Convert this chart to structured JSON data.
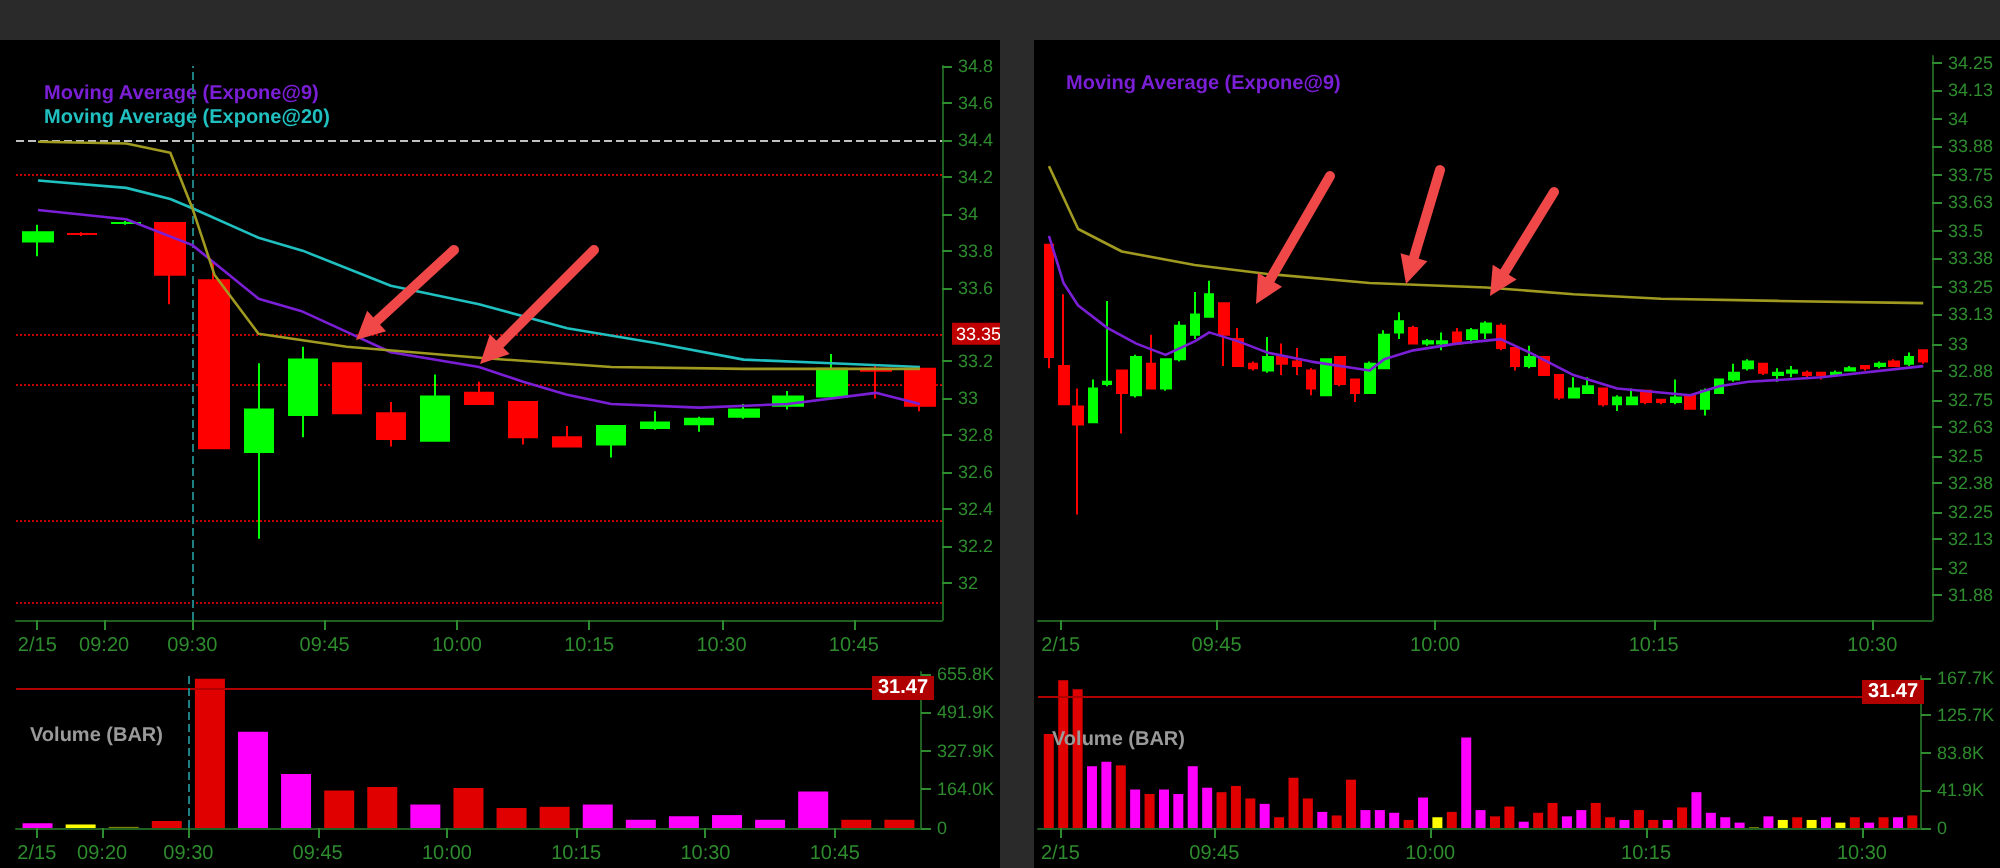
{
  "chart_data": [
    {
      "type": "candlestick",
      "xlim": [
        9.1667,
        10.9167
      ],
      "ylim": [
        31.8,
        34.8
      ],
      "xticks": [
        {
          "value": 9.207,
          "label": "2/15"
        },
        {
          "value": 9.3333,
          "label": "09:20"
        },
        {
          "value": 9.5,
          "label": "09:30"
        },
        {
          "value": 9.75,
          "label": "09:45"
        },
        {
          "value": 10,
          "label": "10:00"
        },
        {
          "value": 10.25,
          "label": "10:15"
        },
        {
          "value": 10.5,
          "label": "10:30"
        },
        {
          "value": 10.75,
          "label": "10:45"
        }
      ],
      "yticks": [
        32,
        32.2,
        32.4,
        32.6,
        32.8,
        33,
        33.2,
        33.6,
        33.8,
        34,
        34.2,
        34.4,
        34.6,
        34.8
      ],
      "x": [
        9.2083,
        9.2917,
        9.375,
        9.4583,
        9.5417,
        9.625,
        9.7083,
        9.7917,
        9.875,
        9.9583,
        10.0417,
        10.125,
        10.2083,
        10.2917,
        10.375,
        10.4583,
        10.5417,
        10.625,
        10.7083,
        10.7917,
        10.875
      ],
      "ohlc": [
        [
          33.85,
          33.94,
          33.77,
          33.9
        ],
        [
          33.89,
          33.9,
          33.88,
          33.89
        ],
        [
          33.95,
          33.96,
          33.94,
          33.95
        ],
        [
          33.95,
          33.95,
          33.51,
          33.67
        ],
        [
          33.64,
          33.74,
          32.73,
          32.73
        ],
        [
          32.71,
          33.19,
          32.24,
          32.94
        ],
        [
          32.91,
          33.28,
          32.79,
          33.21
        ],
        [
          33.19,
          33.19,
          32.92,
          32.92
        ],
        [
          32.92,
          32.98,
          32.74,
          32.78
        ],
        [
          32.77,
          33.13,
          32.77,
          33.01
        ],
        [
          33.03,
          33.09,
          32.97,
          32.97
        ],
        [
          32.98,
          32.98,
          32.75,
          32.79
        ],
        [
          32.79,
          32.85,
          32.74,
          32.74
        ],
        [
          32.75,
          32.85,
          32.68,
          32.85
        ],
        [
          32.84,
          32.93,
          32.83,
          32.87
        ],
        [
          32.86,
          32.9,
          32.82,
          32.89
        ],
        [
          32.9,
          32.97,
          32.89,
          32.94
        ],
        [
          32.96,
          33.04,
          32.94,
          33.01
        ],
        [
          33.01,
          33.24,
          33,
          33.16
        ],
        [
          33.16,
          33.18,
          33,
          33.15
        ],
        [
          33.16,
          33.16,
          32.93,
          32.96
        ]
      ],
      "series": [
        {
          "type": "line",
          "name": "Moving Average (Expone@9)",
          "color": "#7b1fd6",
          "x": [
            9.2083,
            9.375,
            9.5,
            9.625,
            9.7083,
            9.7917,
            9.875,
            10.0417,
            10.125,
            10.2083,
            10.2917,
            10.4583,
            10.625,
            10.7917,
            10.875
          ],
          "values": [
            34.02,
            33.97,
            33.83,
            33.54,
            33.47,
            33.36,
            33.25,
            33.17,
            33.09,
            33.02,
            32.97,
            32.95,
            32.97,
            33.03,
            32.97
          ]
        },
        {
          "type": "line",
          "name": "Moving Average (Expone@20)",
          "color": "#20c0c0",
          "x": [
            9.2083,
            9.375,
            9.4583,
            9.5,
            9.625,
            9.7083,
            9.875,
            10.0417,
            10.2083,
            10.375,
            10.5417,
            10.7083,
            10.875
          ],
          "values": [
            34.18,
            34.14,
            34.08,
            34.03,
            33.87,
            33.8,
            33.61,
            33.51,
            33.38,
            33.3,
            33.21,
            33.19,
            33.17
          ]
        },
        {
          "type": "line",
          "color": "#a09a20",
          "x": [
            9.2083,
            9.375,
            9.4583,
            9.5,
            9.5417,
            9.625,
            9.7917,
            10.0417,
            10.2917,
            10.5417,
            10.875
          ],
          "values": [
            34.39,
            34.38,
            34.33,
            34.03,
            33.67,
            33.35,
            33.28,
            33.22,
            33.17,
            33.16,
            33.16
          ]
        }
      ],
      "ref_lines": [
        {
          "axis": "y",
          "value": 34.4,
          "color": "#c0c0c0",
          "line_style": "dashed"
        },
        {
          "axis": "y",
          "value": 34.21,
          "color": "#c00000",
          "line_style": "dotted"
        },
        {
          "axis": "y",
          "value": 33.35,
          "color": "#c00000",
          "line_style": "dotted",
          "label": "33.35"
        },
        {
          "axis": "y",
          "value": 33.07,
          "color": "#c00000",
          "line_style": "dotted"
        },
        {
          "axis": "y",
          "value": 32.34,
          "color": "#c00000",
          "line_style": "dotted"
        },
        {
          "axis": "y",
          "value": 31.9,
          "color": "#c00000",
          "line_style": "dotted"
        },
        {
          "axis": "x",
          "value": 9.5,
          "color": "#1e8080",
          "line_style": "dashed"
        }
      ],
      "grid": false,
      "legend": "top left"
    },
    {
      "type": "bar",
      "title": "Volume (BAR)",
      "xlim": [
        9.1667,
        10.9167
      ],
      "ylim": [
        0,
        664000
      ],
      "xticks": [
        {
          "value": 9.207,
          "label": "2/15"
        },
        {
          "value": 9.3333,
          "label": "09:20"
        },
        {
          "value": 9.5,
          "label": "09:30"
        },
        {
          "value": 9.75,
          "label": "09:45"
        },
        {
          "value": 10,
          "label": "10:00"
        },
        {
          "value": 10.25,
          "label": "10:15"
        },
        {
          "value": 10.5,
          "label": "10:30"
        },
        {
          "value": 10.75,
          "label": "10:45"
        }
      ],
      "yticks": [
        0,
        {
          "value": 164000,
          "label": "164.0K"
        },
        {
          "value": 327900,
          "label": "327.9K"
        },
        {
          "value": 491900,
          "label": "491.9K"
        },
        {
          "value": 655800,
          "label": "655.8K"
        }
      ],
      "x": [
        9.2083,
        9.2917,
        9.375,
        9.4583,
        9.5417,
        9.625,
        9.7083,
        9.7917,
        9.875,
        9.9583,
        10.0417,
        10.125,
        10.2083,
        10.2917,
        10.375,
        10.4583,
        10.5417,
        10.625,
        10.7083,
        10.7917,
        10.875
      ],
      "values": [
        20000,
        15000,
        5000,
        30000,
        635000,
        410000,
        230000,
        160000,
        175000,
        100000,
        170000,
        85000,
        90000,
        100000,
        35000,
        50000,
        55000,
        35000,
        155000,
        35000,
        35000
      ],
      "colors": [
        "#ff00ff",
        "#ffff00",
        "#808000",
        "#e00000",
        "#e00000",
        "#ff00ff",
        "#ff00ff",
        "#e00000",
        "#e00000",
        "#ff00ff",
        "#e00000",
        "#e00000",
        "#e00000",
        "#ff00ff",
        "#ff00ff",
        "#ff00ff",
        "#ff00ff",
        "#ff00ff",
        "#ff00ff",
        "#e00000",
        "#e00000"
      ],
      "ref_lines": [
        {
          "axis": "y",
          "value": 594000,
          "color": "#b00000",
          "line_style": "solid"
        },
        {
          "axis": "x",
          "value": 9.5,
          "color": "#1e8080",
          "line_style": "dashed"
        }
      ],
      "annotations": [
        "31.47"
      ],
      "grid": false
    },
    {
      "type": "candlestick",
      "xlim": [
        9.5458,
        10.5683
      ],
      "ylim": [
        31.77,
        34.28
      ],
      "xticks": [
        {
          "value": 9.5717,
          "label": "2/15"
        },
        {
          "value": 9.75,
          "label": "09:45"
        },
        {
          "value": 10,
          "label": "10:00"
        },
        {
          "value": 10.25,
          "label": "10:15"
        },
        {
          "value": 10.5,
          "label": "10:30"
        }
      ],
      "yticks": [
        31.88,
        32,
        32.13,
        32.25,
        32.38,
        32.5,
        32.63,
        32.75,
        32.88,
        33,
        33.13,
        33.25,
        33.38,
        33.5,
        33.63,
        33.75,
        33.88,
        34,
        34.13,
        34.25
      ],
      "x": [
        9.5583,
        9.575,
        9.5917,
        9.6083,
        9.625,
        9.6417,
        9.6583,
        9.675,
        9.6917,
        9.7083,
        9.725,
        9.7417,
        9.7583,
        9.775,
        9.7917,
        9.8083,
        9.825,
        9.8417,
        9.8583,
        9.875,
        9.8917,
        9.9083,
        9.925,
        9.9417,
        9.9583,
        9.975,
        9.9917,
        10.0083,
        10.025,
        10.0417,
        10.0583,
        10.075,
        10.0917,
        10.1083,
        10.125,
        10.1417,
        10.1583,
        10.175,
        10.1917,
        10.2083,
        10.225,
        10.2417,
        10.2583,
        10.275,
        10.2917,
        10.3083,
        10.325,
        10.3417,
        10.3583,
        10.375,
        10.3917,
        10.4083,
        10.425,
        10.4417,
        10.4583,
        10.475,
        10.4917,
        10.5083,
        10.525,
        10.5417,
        10.5583
      ],
      "ohlc": [
        [
          33.44,
          33.44,
          32.89,
          32.94
        ],
        [
          32.9,
          33.22,
          32.73,
          32.73
        ],
        [
          32.72,
          32.8,
          32.24,
          32.64
        ],
        [
          32.65,
          32.84,
          32.65,
          32.8
        ],
        [
          32.82,
          33.19,
          32.81,
          32.83
        ],
        [
          32.88,
          32.88,
          32.6,
          32.78
        ],
        [
          32.77,
          32.95,
          32.76,
          32.94
        ],
        [
          32.91,
          33.04,
          32.8,
          32.8
        ],
        [
          32.8,
          32.93,
          32.79,
          32.93
        ],
        [
          32.93,
          33.1,
          32.92,
          33.08
        ],
        [
          33.04,
          33.23,
          33.02,
          33.13
        ],
        [
          33.12,
          33.28,
          33.12,
          33.22
        ],
        [
          33.18,
          33.18,
          32.9,
          33.04
        ],
        [
          33.02,
          33.07,
          32.9,
          32.9
        ],
        [
          32.91,
          32.92,
          32.88,
          32.89
        ],
        [
          32.88,
          33.03,
          32.87,
          32.94
        ],
        [
          32.94,
          33,
          32.86,
          32.91
        ],
        [
          32.92,
          32.98,
          32.86,
          32.9
        ],
        [
          32.88,
          32.89,
          32.77,
          32.8
        ],
        [
          32.77,
          32.93,
          32.77,
          32.93
        ],
        [
          32.94,
          32.94,
          32.81,
          32.82
        ],
        [
          32.84,
          32.84,
          32.74,
          32.78
        ],
        [
          32.78,
          32.92,
          32.78,
          32.91
        ],
        [
          32.89,
          33.06,
          32.89,
          33.04
        ],
        [
          33.05,
          33.14,
          33.02,
          33.1
        ],
        [
          33.07,
          33.08,
          33,
          33
        ],
        [
          33,
          33.02,
          32.99,
          33.01
        ],
        [
          33,
          33.05,
          32.97,
          33.01
        ],
        [
          33.05,
          33.07,
          33,
          33
        ],
        [
          33.02,
          33.07,
          33,
          33.06
        ],
        [
          33.05,
          33.1,
          33.02,
          33.09
        ],
        [
          33.08,
          33.09,
          32.97,
          32.98
        ],
        [
          32.98,
          32.98,
          32.88,
          32.9
        ],
        [
          32.9,
          32.99,
          32.89,
          32.94
        ],
        [
          32.94,
          32.94,
          32.86,
          32.86
        ],
        [
          32.86,
          32.86,
          32.75,
          32.76
        ],
        [
          32.76,
          32.85,
          32.76,
          32.8
        ],
        [
          32.78,
          32.85,
          32.78,
          32.81
        ],
        [
          32.8,
          32.8,
          32.72,
          32.73
        ],
        [
          32.73,
          32.77,
          32.7,
          32.76
        ],
        [
          32.73,
          32.8,
          32.73,
          32.76
        ],
        [
          32.79,
          32.79,
          32.73,
          32.74
        ],
        [
          32.75,
          32.75,
          32.73,
          32.74
        ],
        [
          32.74,
          32.84,
          32.73,
          32.76
        ],
        [
          32.77,
          32.77,
          32.71,
          32.71
        ],
        [
          32.71,
          32.8,
          32.68,
          32.79
        ],
        [
          32.78,
          32.84,
          32.78,
          32.84
        ],
        [
          32.84,
          32.91,
          32.83,
          32.87
        ],
        [
          32.89,
          32.93,
          32.88,
          32.92
        ],
        [
          32.91,
          32.91,
          32.86,
          32.87
        ],
        [
          32.86,
          32.89,
          32.83,
          32.87
        ],
        [
          32.87,
          32.9,
          32.85,
          32.88
        ],
        [
          32.87,
          32.88,
          32.85,
          32.86
        ],
        [
          32.87,
          32.87,
          32.84,
          32.86
        ],
        [
          32.86,
          32.88,
          32.86,
          32.87
        ],
        [
          32.88,
          32.9,
          32.88,
          32.89
        ],
        [
          32.9,
          32.9,
          32.88,
          32.89
        ],
        [
          32.9,
          32.92,
          32.89,
          32.91
        ],
        [
          32.92,
          32.93,
          32.9,
          32.9
        ],
        [
          32.91,
          32.96,
          32.9,
          32.94
        ],
        [
          32.97,
          32.97,
          32.91,
          32.92
        ]
      ],
      "series": [
        {
          "type": "line",
          "name": "Moving Average (Expone@9)",
          "color": "#7b1fd6",
          "x": [
            9.5583,
            9.575,
            9.5917,
            9.625,
            9.6583,
            9.6917,
            9.725,
            9.7417,
            9.775,
            9.8083,
            9.8583,
            9.9083,
            9.925,
            9.9417,
            9.975,
            10.025,
            10.075,
            10.1083,
            10.1583,
            10.2083,
            10.2917,
            10.325,
            10.3583,
            10.4417,
            10.5583
          ],
          "values": [
            33.48,
            33.27,
            33.17,
            33.07,
            33,
            32.95,
            33.01,
            33.05,
            33.01,
            32.96,
            32.92,
            32.89,
            32.88,
            32.93,
            32.97,
            33,
            33.02,
            32.96,
            32.86,
            32.8,
            32.77,
            32.81,
            32.83,
            32.85,
            32.9
          ]
        },
        {
          "type": "line",
          "color": "#a09a20",
          "x": [
            9.5583,
            9.5917,
            9.6417,
            9.725,
            9.8083,
            9.925,
            10.0583,
            10.1583,
            10.2583,
            10.3917,
            10.5583
          ],
          "values": [
            33.79,
            33.51,
            33.41,
            33.35,
            33.31,
            33.27,
            33.25,
            33.22,
            33.2,
            33.19,
            33.18
          ]
        }
      ],
      "grid": false,
      "legend": "top left"
    },
    {
      "type": "bar",
      "title": "Volume (BAR)",
      "xlim": [
        9.5458,
        10.5683
      ],
      "ylim": [
        0,
        169800
      ],
      "xticks": [
        {
          "value": 9.5717,
          "label": "2/15"
        },
        {
          "value": 9.75,
          "label": "09:45"
        },
        {
          "value": 10,
          "label": "10:00"
        },
        {
          "value": 10.25,
          "label": "10:15"
        },
        {
          "value": 10.5,
          "label": "10:30"
        }
      ],
      "yticks": [
        0,
        {
          "value": 41900,
          "label": "41.9K"
        },
        {
          "value": 83800,
          "label": "83.8K"
        },
        {
          "value": 125700,
          "label": "125.7K"
        },
        {
          "value": 167700,
          "label": "167.7K"
        }
      ],
      "x": [
        9.5583,
        9.575,
        9.5917,
        9.6083,
        9.625,
        9.6417,
        9.6583,
        9.675,
        9.6917,
        9.7083,
        9.725,
        9.7417,
        9.7583,
        9.775,
        9.7917,
        9.8083,
        9.825,
        9.8417,
        9.8583,
        9.875,
        9.8917,
        9.9083,
        9.925,
        9.9417,
        9.9583,
        9.975,
        9.9917,
        10.0083,
        10.025,
        10.0417,
        10.0583,
        10.075,
        10.0917,
        10.1083,
        10.125,
        10.1417,
        10.1583,
        10.175,
        10.1917,
        10.2083,
        10.225,
        10.2417,
        10.2583,
        10.275,
        10.2917,
        10.3083,
        10.325,
        10.3417,
        10.3583,
        10.375,
        10.3917,
        10.4083,
        10.425,
        10.4417,
        10.4583,
        10.475,
        10.4917,
        10.5083,
        10.525,
        10.5417,
        10.5583
      ],
      "values": [
        105000,
        165000,
        155000,
        69000,
        74000,
        70000,
        43000,
        38000,
        43000,
        38000,
        69000,
        45000,
        40000,
        47000,
        33000,
        27000,
        12000,
        56000,
        33000,
        18000,
        14000,
        54000,
        20000,
        20000,
        17000,
        9000,
        34000,
        12000,
        18000,
        101000,
        20000,
        13000,
        24000,
        7000,
        17000,
        28000,
        13000,
        20000,
        28000,
        12000,
        9000,
        20000,
        9000,
        9000,
        23000,
        40000,
        17000,
        12000,
        6000,
        1000,
        13000,
        9000,
        12000,
        9000,
        12000,
        6000,
        12000,
        6000,
        12000,
        12000,
        14000
      ],
      "colors": [
        "#e00000",
        "#e00000",
        "#e00000",
        "#ff00ff",
        "#ff00ff",
        "#e00000",
        "#ff00ff",
        "#e00000",
        "#ff00ff",
        "#ff00ff",
        "#ff00ff",
        "#ff00ff",
        "#e00000",
        "#e00000",
        "#e00000",
        "#ff00ff",
        "#e00000",
        "#e00000",
        "#e00000",
        "#ff00ff",
        "#e00000",
        "#e00000",
        "#ff00ff",
        "#ff00ff",
        "#ff00ff",
        "#e00000",
        "#ff00ff",
        "#ffff00",
        "#e00000",
        "#ff00ff",
        "#ff00ff",
        "#e00000",
        "#e00000",
        "#ff00ff",
        "#e00000",
        "#e00000",
        "#ff00ff",
        "#ff00ff",
        "#e00000",
        "#e00000",
        "#ff00ff",
        "#e00000",
        "#e00000",
        "#ff00ff",
        "#e00000",
        "#ff00ff",
        "#ff00ff",
        "#ff00ff",
        "#ff00ff",
        "#808000",
        "#ff00ff",
        "#ffff00",
        "#e00000",
        "#ffff00",
        "#ff00ff",
        "#ffff00",
        "#e00000",
        "#ff00ff",
        "#e00000",
        "#ff00ff",
        "#e00000"
      ],
      "ref_lines": [
        {
          "axis": "y",
          "value": 146600,
          "color": "#b00000",
          "line_style": "solid"
        }
      ],
      "annotations": [
        "31.47"
      ],
      "grid": false
    }
  ]
}
